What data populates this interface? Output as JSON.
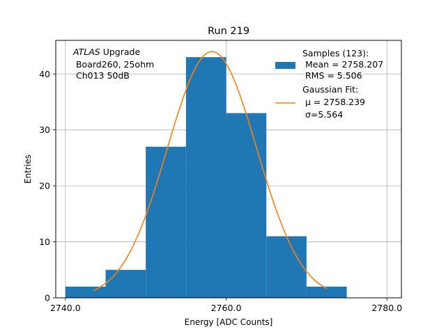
{
  "chart_data": {
    "type": "bar",
    "title": "Run 219",
    "xlabel": "Energy [ADC Counts]",
    "ylabel": "Entries",
    "xlim": [
      2738.8,
      2781.8
    ],
    "ylim": [
      0,
      46
    ],
    "x_ticks": [
      2740.0,
      2760.0,
      2780.0
    ],
    "x_tick_labels": [
      "2740.0",
      "2760.0",
      "2780.0"
    ],
    "y_ticks": [
      0,
      10,
      20,
      30,
      40
    ],
    "y_tick_labels": [
      "0",
      "10",
      "20",
      "30",
      "40"
    ],
    "grid": true,
    "bar_color": "#1f77b4",
    "curve_color": "#ff7f0e",
    "histogram": {
      "bins": [
        {
          "x0": 2740,
          "x1": 2745,
          "count": 2
        },
        {
          "x0": 2745,
          "x1": 2750,
          "count": 5
        },
        {
          "x0": 2750,
          "x1": 2755,
          "count": 27
        },
        {
          "x0": 2755,
          "x1": 2760,
          "count": 43
        },
        {
          "x0": 2760,
          "x1": 2765,
          "count": 33
        },
        {
          "x0": 2765,
          "x1": 2770,
          "count": 11
        },
        {
          "x0": 2770,
          "x1": 2775,
          "count": 2
        }
      ]
    },
    "gaussian_fit": {
      "mu": 2758.239,
      "sigma": 5.564,
      "amplitude": 44,
      "x_range": [
        2743.5,
        2772.5
      ]
    },
    "annotation": {
      "italic": "ATLAS",
      "rest": " Upgrade",
      "line2": " Board260, 25ohm",
      "line3": " Ch013 50dB"
    },
    "legend": {
      "position": "top-right",
      "samples": {
        "line1": "Samples (123):",
        "line2": " Mean = 2758.207",
        "line3": " RMS = 5.506"
      },
      "fit": {
        "line1": "Gaussian Fit:",
        "line2": " μ = 2758.239",
        "line3": " σ=5.564"
      }
    }
  }
}
